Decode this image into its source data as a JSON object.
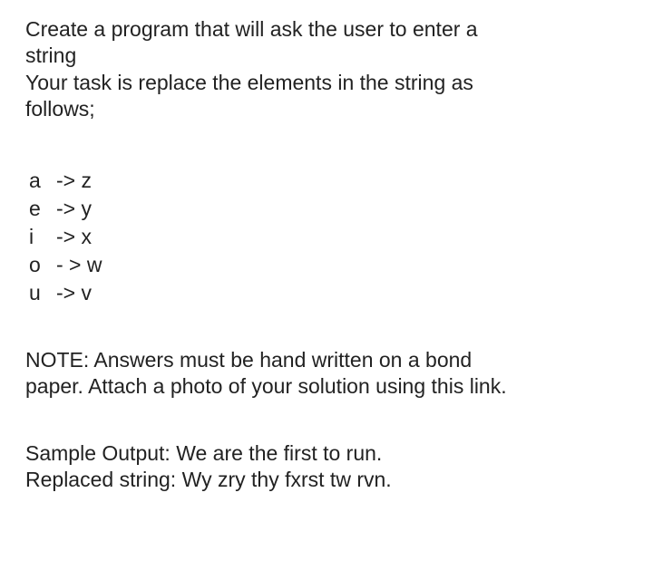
{
  "intro": {
    "line1": "Create a program that will ask the user to enter a",
    "line2": "string",
    "line3": "Your task is replace the elements in the string as",
    "line4": "follows;"
  },
  "mappings": [
    {
      "from": "a",
      "to": "-> z"
    },
    {
      "from": "e",
      "to": "-> y"
    },
    {
      "from": "i",
      "to": "-> x"
    },
    {
      "from": "o",
      "to": "- > w"
    },
    {
      "from": "u",
      "to": "-> v"
    }
  ],
  "note": {
    "line1": "NOTE:  Answers must be hand written on a bond",
    "line2": "paper. Attach a photo of your solution using this link."
  },
  "sample": {
    "line1": "Sample Output: We are the first to run.",
    "line2": "Replaced string: Wy zry thy fxrst tw rvn."
  },
  "colors": {
    "text": "#222222",
    "background": "#ffffff"
  },
  "typography": {
    "font_family": "Arial, Helvetica, sans-serif",
    "font_size_pt": 17,
    "line_height": 1.28
  }
}
